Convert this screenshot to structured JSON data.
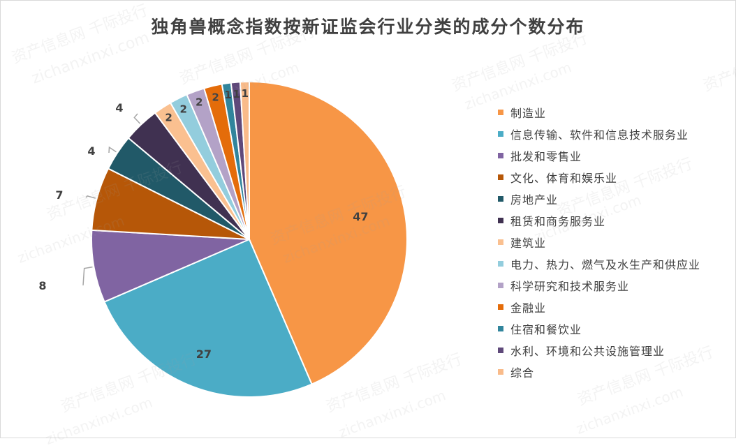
{
  "chart_data": {
    "type": "pie",
    "title": "独角兽概念指数按新证监会行业分类的成分个数分布",
    "slices": [
      {
        "label": "制造业",
        "value": 47,
        "color": "#F79646"
      },
      {
        "label": "信息传输、软件和信息技术服务业",
        "value": 27,
        "color": "#4BACC6"
      },
      {
        "label": "批发和零售业",
        "value": 8,
        "color": "#8064A2"
      },
      {
        "label": "文化、体育和娱乐业",
        "value": 7,
        "color": "#B65708"
      },
      {
        "label": "房地产业",
        "value": 4,
        "color": "#215968"
      },
      {
        "label": "租赁和商务服务业",
        "value": 4,
        "color": "#403151"
      },
      {
        "label": "建筑业",
        "value": 2,
        "color": "#FAC090"
      },
      {
        "label": "电力、热力、燃气及水生产和供应业",
        "value": 2,
        "color": "#93CDDD"
      },
      {
        "label": "科学研究和技术服务业",
        "value": 2,
        "color": "#B3A2C7"
      },
      {
        "label": "金融业",
        "value": 2,
        "color": "#E46C0A"
      },
      {
        "label": "住宿和餐饮业",
        "value": 1,
        "color": "#31859C"
      },
      {
        "label": "水利、环境和公共设施管理业",
        "value": 1,
        "color": "#5F497A"
      },
      {
        "label": "综合",
        "value": 1,
        "color": "#F9BB8A"
      }
    ],
    "legend_position": "right",
    "value_text_color": "#404040",
    "watermark_text": [
      "资产信息网 千际投行",
      "zichanxinxi.com"
    ]
  }
}
